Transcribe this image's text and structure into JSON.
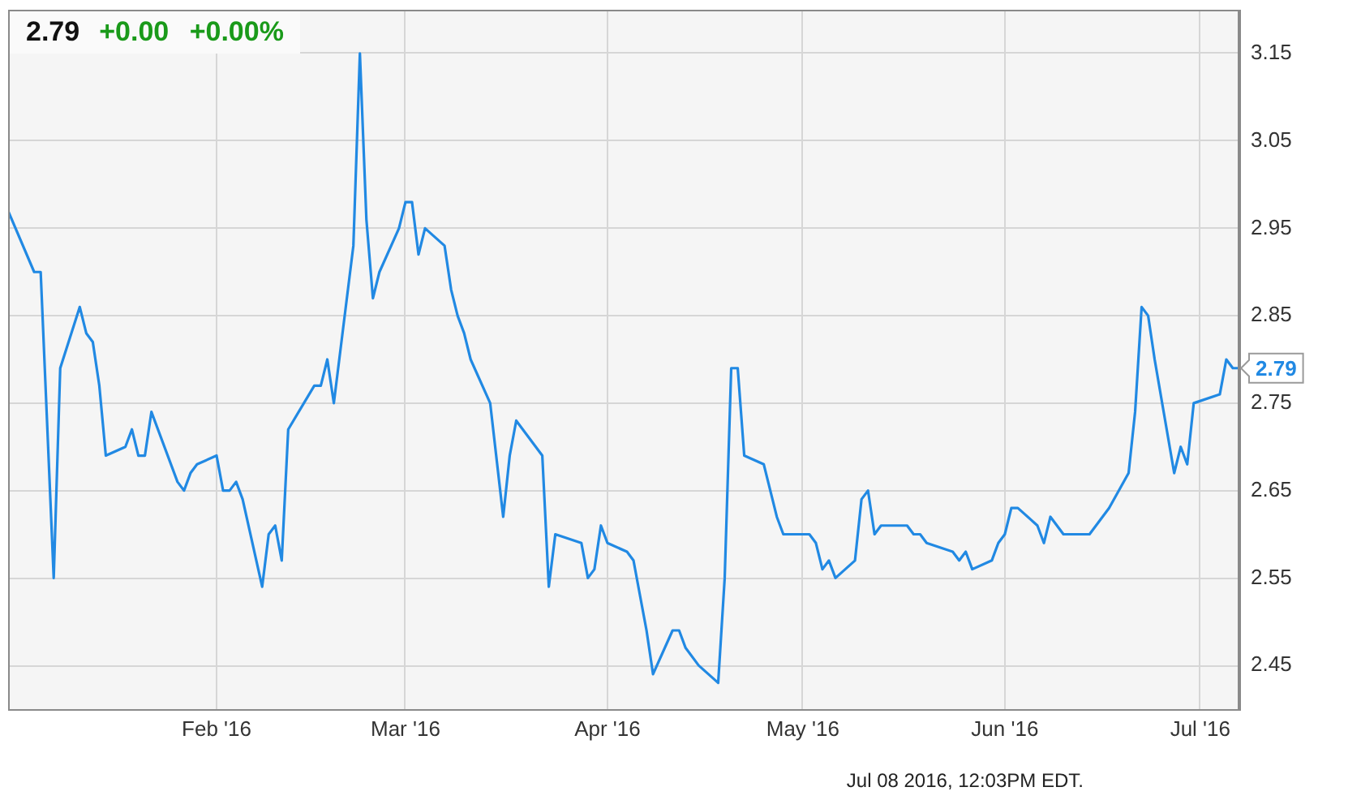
{
  "chart_data": {
    "type": "line",
    "title": "2.79",
    "subtitle": "+0.00 +0.00%",
    "x": [
      "2015-12-31",
      "2016-01-04",
      "2016-01-05",
      "2016-01-07",
      "2016-01-08",
      "2016-01-11",
      "2016-01-12",
      "2016-01-13",
      "2016-01-14",
      "2016-01-15",
      "2016-01-18",
      "2016-01-19",
      "2016-01-20",
      "2016-01-21",
      "2016-01-22",
      "2016-01-26",
      "2016-01-27",
      "2016-01-28",
      "2016-01-29",
      "2016-02-01",
      "2016-02-02",
      "2016-02-03",
      "2016-02-04",
      "2016-02-05",
      "2016-02-08",
      "2016-02-09",
      "2016-02-10",
      "2016-02-11",
      "2016-02-12",
      "2016-02-16",
      "2016-02-17",
      "2016-02-18",
      "2016-02-19",
      "2016-02-22",
      "2016-02-23",
      "2016-02-24",
      "2016-02-25",
      "2016-02-26",
      "2016-02-29",
      "2016-03-01",
      "2016-03-02",
      "2016-03-03",
      "2016-03-04",
      "2016-03-07",
      "2016-03-08",
      "2016-03-09",
      "2016-03-10",
      "2016-03-11",
      "2016-03-14",
      "2016-03-16",
      "2016-03-17",
      "2016-03-18",
      "2016-03-22",
      "2016-03-23",
      "2016-03-24",
      "2016-03-28",
      "2016-03-29",
      "2016-03-30",
      "2016-03-31",
      "2016-04-01",
      "2016-04-04",
      "2016-04-05",
      "2016-04-06",
      "2016-04-07",
      "2016-04-08",
      "2016-04-11",
      "2016-04-12",
      "2016-04-13",
      "2016-04-15",
      "2016-04-18",
      "2016-04-19",
      "2016-04-20",
      "2016-04-21",
      "2016-04-22",
      "2016-04-25",
      "2016-04-27",
      "2016-04-28",
      "2016-05-02",
      "2016-05-03",
      "2016-05-04",
      "2016-05-05",
      "2016-05-06",
      "2016-05-09",
      "2016-05-10",
      "2016-05-11",
      "2016-05-12",
      "2016-05-13",
      "2016-05-17",
      "2016-05-18",
      "2016-05-19",
      "2016-05-20",
      "2016-05-24",
      "2016-05-25",
      "2016-05-26",
      "2016-05-27",
      "2016-05-30",
      "2016-05-31",
      "2016-06-01",
      "2016-06-02",
      "2016-06-03",
      "2016-06-06",
      "2016-06-07",
      "2016-06-08",
      "2016-06-10",
      "2016-06-14",
      "2016-06-17",
      "2016-06-20",
      "2016-06-21",
      "2016-06-22",
      "2016-06-23",
      "2016-06-24",
      "2016-06-27",
      "2016-06-28",
      "2016-06-29",
      "2016-06-30",
      "2016-07-04",
      "2016-07-05",
      "2016-07-06",
      "2016-07-07"
    ],
    "series": [
      {
        "color": "#2189e3",
        "values": [
          2.97,
          2.9,
          2.9,
          2.55,
          2.79,
          2.86,
          2.83,
          2.82,
          2.77,
          2.69,
          2.7,
          2.72,
          2.69,
          2.69,
          2.74,
          2.66,
          2.65,
          2.67,
          2.68,
          2.69,
          2.65,
          2.65,
          2.66,
          2.64,
          2.54,
          2.6,
          2.61,
          2.57,
          2.72,
          2.77,
          2.77,
          2.8,
          2.75,
          2.93,
          3.15,
          2.96,
          2.87,
          2.9,
          2.95,
          2.98,
          2.98,
          2.92,
          2.95,
          2.93,
          2.88,
          2.85,
          2.83,
          2.8,
          2.75,
          2.62,
          2.69,
          2.73,
          2.69,
          2.54,
          2.6,
          2.59,
          2.55,
          2.56,
          2.61,
          2.59,
          2.58,
          2.57,
          2.53,
          2.49,
          2.44,
          2.49,
          2.49,
          2.47,
          2.45,
          2.43,
          2.55,
          2.79,
          2.79,
          2.69,
          2.68,
          2.62,
          2.6,
          2.6,
          2.59,
          2.56,
          2.57,
          2.55,
          2.57,
          2.64,
          2.65,
          2.6,
          2.61,
          2.61,
          2.6,
          2.6,
          2.59,
          2.58,
          2.57,
          2.58,
          2.56,
          2.57,
          2.59,
          2.6,
          2.63,
          2.63,
          2.61,
          2.59,
          2.62,
          2.6,
          2.6,
          2.63,
          2.67,
          2.74,
          2.86,
          2.85,
          2.8,
          2.67,
          2.7,
          2.68,
          2.75,
          2.76,
          2.8,
          2.79,
          2.79
        ]
      }
    ],
    "xlim": [
      "2015-12-31",
      "2016-07-07"
    ],
    "xticks": [
      {
        "value": "2016-02-01",
        "label": "Feb '16"
      },
      {
        "value": "2016-03-01",
        "label": "Mar '16"
      },
      {
        "value": "2016-04-01",
        "label": "Apr '16"
      },
      {
        "value": "2016-05-01",
        "label": "May '16"
      },
      {
        "value": "2016-06-01",
        "label": "Jun '16"
      },
      {
        "value": "2016-07-01",
        "label": "Jul '16"
      }
    ],
    "ylim": [
      2.4,
      3.2
    ],
    "yticks": [
      2.45,
      2.55,
      2.65,
      2.75,
      2.85,
      2.95,
      3.05,
      3.15
    ],
    "grid": true,
    "marker": "none",
    "annotations": [
      {
        "text": "2.79",
        "x": "2016-07-07",
        "y": 2.79
      },
      "Jul 08 2016, 12:03PM EDT."
    ]
  }
}
